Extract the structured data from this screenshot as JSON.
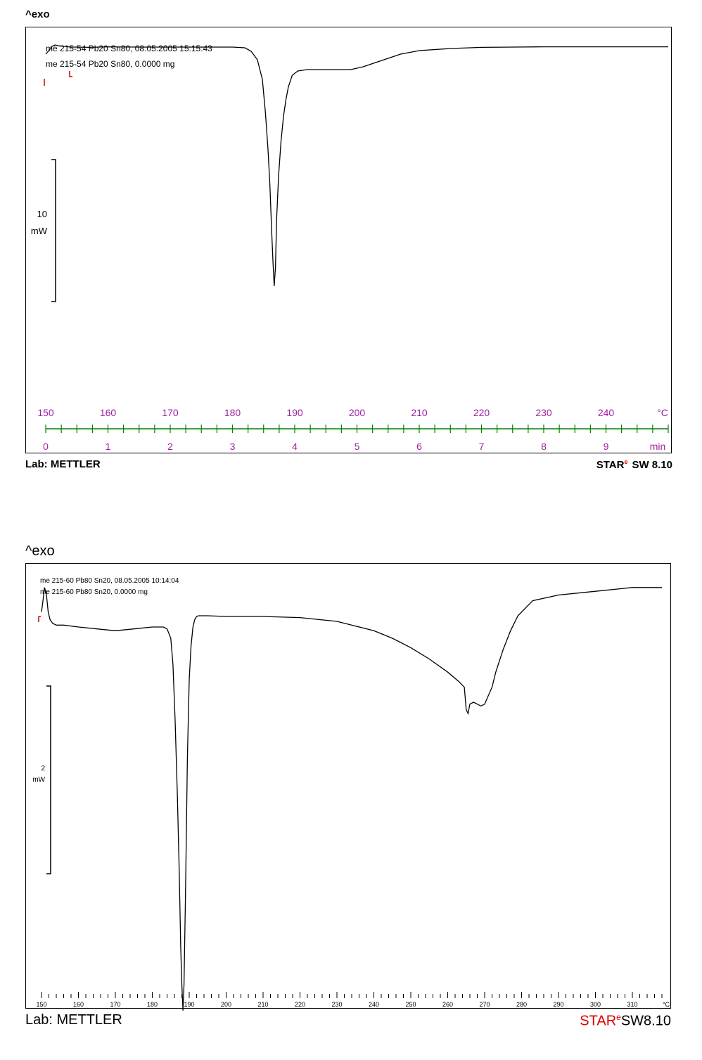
{
  "chart_data": [
    {
      "type": "line",
      "exo_label": "^exo",
      "legend": [
        "me 215-54 Pb20 Sn80, 08.05.2005 15:15:43",
        "me 215-54 Pb20 Sn80, 0.0000 mg"
      ],
      "scale_bar": {
        "value": "10",
        "unit": "mW"
      },
      "temperature_ticks": [
        "150",
        "160",
        "170",
        "180",
        "190",
        "200",
        "210",
        "220",
        "230",
        "240"
      ],
      "temperature_unit": "°C",
      "time_ticks": [
        "0",
        "1",
        "2",
        "3",
        "4",
        "5",
        "6",
        "7",
        "8",
        "9"
      ],
      "time_unit": "min",
      "x_unit": "°C",
      "xlim": [
        150,
        250
      ],
      "series": [
        {
          "x": [
            150,
            150.5,
            150.8,
            151,
            151.5,
            152,
            153,
            154,
            155,
            157,
            160,
            165,
            170,
            175,
            180,
            182,
            183,
            184,
            184.8,
            185.3,
            185.7,
            186,
            186.3,
            186.5,
            186.7,
            186.9,
            187.1,
            187.4,
            187.8,
            188.2,
            188.6,
            189,
            189.6,
            190.5,
            192,
            195,
            197,
            199,
            201,
            203,
            205,
            207,
            210,
            215,
            220,
            225,
            230,
            240,
            250
          ],
          "y": [
            1.2,
            1.45,
            1.6,
            1.75,
            1.85,
            1.8,
            1.75,
            1.7,
            1.7,
            1.68,
            1.72,
            1.7,
            1.7,
            1.7,
            1.7,
            1.65,
            1.4,
            0.8,
            -0.6,
            -3.0,
            -5.5,
            -8.0,
            -11.5,
            -13.5,
            -15.3,
            -14.0,
            -10.5,
            -7.5,
            -5.0,
            -3.2,
            -2.0,
            -1.1,
            -0.3,
            0.0,
            0.1,
            0.1,
            0.1,
            0.1,
            0.3,
            0.6,
            0.9,
            1.2,
            1.45,
            1.6,
            1.68,
            1.7,
            1.72,
            1.72,
            1.72
          ]
        }
      ],
      "footer_lab": "Lab: METTLER",
      "footer_star": "STAR",
      "footer_star_sup": "e",
      "footer_version": "SW 8.10"
    },
    {
      "type": "line",
      "exo_label": "^exo",
      "legend": [
        "me 215-60 Pb80 Sn20, 08.05.2005 10:14:04",
        "me 215-60 Pb80 Sn20, 0.0000 mg"
      ],
      "scale_bar": {
        "value": "2",
        "unit": "mW"
      },
      "temperature_ticks": [
        "150",
        "160",
        "170",
        "180",
        "190",
        "200",
        "210",
        "220",
        "230",
        "240",
        "250",
        "260",
        "270",
        "280",
        "290",
        "300",
        "310"
      ],
      "temperature_unit": "°C",
      "x_unit": "°C",
      "xlim": [
        149.5,
        318
      ],
      "series": [
        {
          "x": [
            150,
            150.4,
            150.8,
            151.3,
            151.8,
            152.3,
            153,
            154,
            156,
            160,
            165,
            170,
            175,
            180,
            183,
            184,
            185,
            185.6,
            186.2,
            186.8,
            187.3,
            187.7,
            188,
            188.3,
            188.6,
            189,
            189.5,
            190,
            190.5,
            191,
            191.5,
            192,
            192.5,
            193,
            195,
            200,
            210,
            220,
            230,
            240,
            245,
            250,
            255,
            260,
            263,
            264,
            264.5,
            265,
            265.5,
            266,
            267,
            268,
            269,
            270,
            272,
            273,
            275,
            277,
            279,
            283,
            290,
            300,
            310,
            318
          ],
          "y": [
            0.4,
            0.7,
            1.05,
            0.9,
            0.4,
            0.2,
            0.1,
            0.05,
            0.05,
            0.0,
            -0.05,
            -0.1,
            -0.05,
            0.0,
            0.0,
            -0.05,
            -0.3,
            -1.0,
            -2.5,
            -4.5,
            -6.5,
            -8.5,
            -9.5,
            -10.2,
            -9.5,
            -7.0,
            -3.5,
            -1.4,
            -0.5,
            0.0,
            0.2,
            0.28,
            0.3,
            0.3,
            0.3,
            0.28,
            0.28,
            0.25,
            0.15,
            -0.1,
            -0.3,
            -0.55,
            -0.85,
            -1.2,
            -1.45,
            -1.55,
            -1.6,
            -2.2,
            -2.3,
            -2.05,
            -2.0,
            -2.05,
            -2.1,
            -2.05,
            -1.6,
            -1.2,
            -0.6,
            -0.1,
            0.3,
            0.7,
            0.85,
            0.95,
            1.05,
            1.05
          ]
        }
      ],
      "footer_lab": "Lab: METTLER",
      "footer_star": "STAR",
      "footer_star_sup": "e",
      "footer_version": "SW8.10"
    }
  ]
}
